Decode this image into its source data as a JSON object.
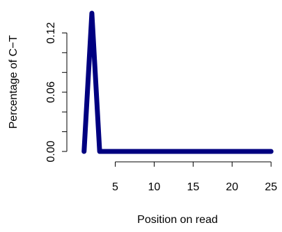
{
  "chart_data": {
    "type": "line",
    "title": "",
    "xlabel": "Position on read",
    "ylabel": "Percentage of C−T",
    "xlim": [
      0.04,
      25.96
    ],
    "ylim": [
      -0.0056,
      0.1456
    ],
    "x_ticks": [
      5,
      10,
      15,
      20,
      25
    ],
    "x_tick_labels": [
      "5",
      "10",
      "15",
      "20",
      "25"
    ],
    "y_ticks": [
      0.0,
      0.02,
      0.04,
      0.06,
      0.08,
      0.1,
      0.12
    ],
    "y_tick_labels": [
      "0.00",
      "",
      "",
      "0.06",
      "",
      "",
      "0.12"
    ],
    "grid": false,
    "series": [
      {
        "color": "#000080",
        "x": [
          1,
          2,
          3,
          4,
          5,
          6,
          7,
          8,
          9,
          10,
          11,
          12,
          13,
          14,
          15,
          16,
          17,
          18,
          19,
          20,
          21,
          22,
          23,
          24,
          25
        ],
        "values": [
          0.0,
          0.14,
          0.0,
          0.0,
          0.0,
          0.0,
          0.0,
          0.0,
          0.0,
          0.0,
          0.0,
          0.0,
          0.0,
          0.0,
          0.0,
          0.0,
          0.0,
          0.0,
          0.0,
          0.0,
          0.0,
          0.0,
          0.0,
          0.0,
          0.0
        ]
      }
    ]
  }
}
